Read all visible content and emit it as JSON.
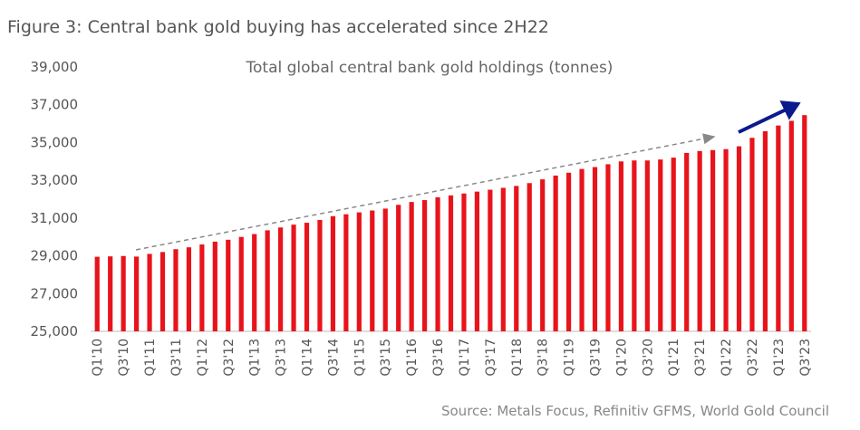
{
  "chart_data": {
    "type": "bar",
    "figure_title": "Figure 3: Central bank gold buying has accelerated since 2H22",
    "title": "Total global central bank gold holdings (tonnes)",
    "source": "Source: Metals Focus, Refinitiv GFMS, World Gold Council",
    "categories": [
      "Q1'10",
      null,
      "Q3'10",
      null,
      "Q1'11",
      null,
      "Q3'11",
      null,
      "Q1'12",
      null,
      "Q3'12",
      null,
      "Q1'13",
      null,
      "Q3'13",
      null,
      "Q1'14",
      null,
      "Q3'14",
      null,
      "Q1'15",
      null,
      "Q3'15",
      null,
      "Q1'16",
      null,
      "Q3'16",
      null,
      "Q1'17",
      null,
      "Q3'17",
      null,
      "Q1'18",
      null,
      "Q3'18",
      null,
      "Q1'19",
      null,
      "Q3'19",
      null,
      "Q1'20",
      null,
      "Q3'20",
      null,
      "Q1'21",
      null,
      "Q3'21",
      null,
      "Q1'22",
      null,
      "Q3'22",
      null,
      "Q1'23",
      null,
      "Q3'23"
    ],
    "values": [
      28950,
      28970,
      28990,
      28960,
      29100,
      29200,
      29350,
      29450,
      29600,
      29750,
      29850,
      30000,
      30150,
      30350,
      30500,
      30650,
      30750,
      30900,
      31100,
      31200,
      31300,
      31400,
      31500,
      31700,
      31850,
      31950,
      32100,
      32200,
      32300,
      32400,
      32500,
      32600,
      32700,
      32850,
      33050,
      33250,
      33400,
      33600,
      33700,
      33850,
      34000,
      34050,
      34050,
      34100,
      34200,
      34450,
      34550,
      34600,
      34650,
      34800,
      35250,
      35600,
      35900,
      36150,
      36450
    ],
    "color": "#e8141c",
    "ylim": [
      25000,
      39000
    ],
    "yticks": [
      {
        "value": 25000,
        "label": "25,000"
      },
      {
        "value": 27000,
        "label": "27,000"
      },
      {
        "value": 29000,
        "label": "29,000"
      },
      {
        "value": 31000,
        "label": "31,000"
      },
      {
        "value": 33000,
        "label": "33,000"
      },
      {
        "value": 35000,
        "label": "35,000"
      },
      {
        "value": 37000,
        "label": "37,000"
      },
      {
        "value": 39000,
        "label": "39,000"
      }
    ],
    "grid": false
  }
}
